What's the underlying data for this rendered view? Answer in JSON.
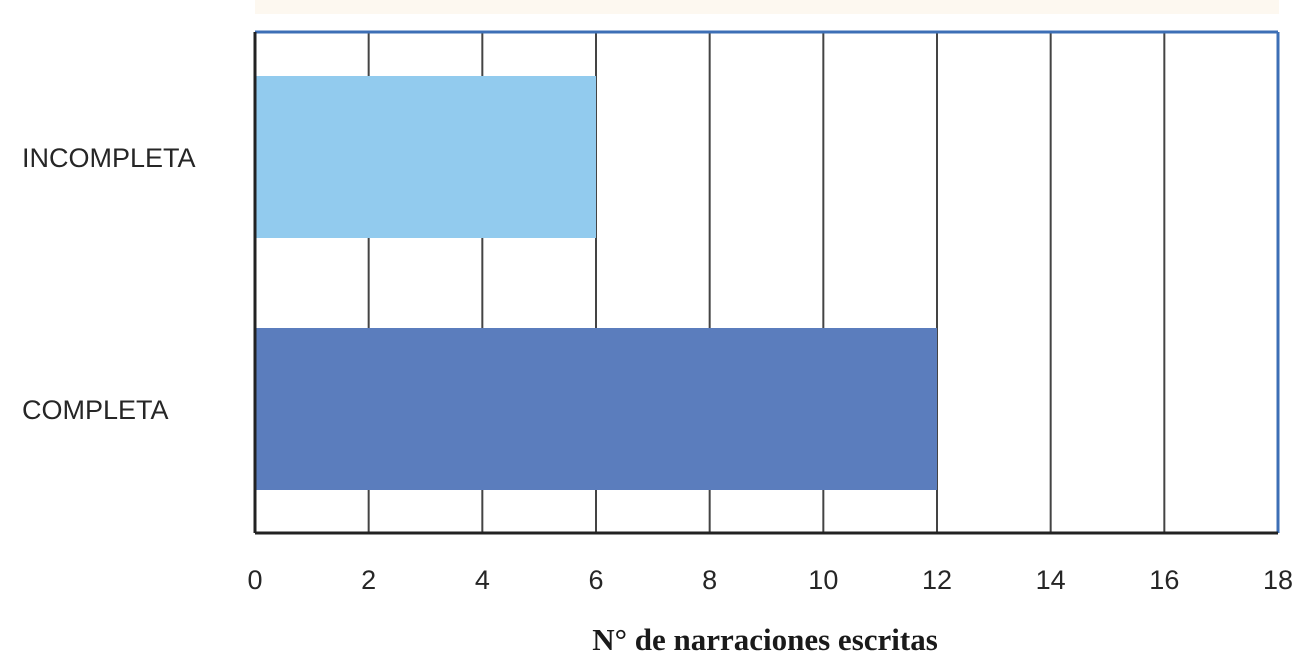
{
  "chart_data": {
    "type": "bar",
    "orientation": "horizontal",
    "categories": [
      "INCOMPLETA",
      "COMPLETA"
    ],
    "values": [
      6,
      12
    ],
    "colors": [
      "#92cbee",
      "#5b7dbd"
    ],
    "xlabel": "N° de narraciones escritas",
    "ylabel": "",
    "title": "",
    "xlim": [
      0,
      18
    ],
    "xticks": [
      0,
      2,
      4,
      6,
      8,
      10,
      12,
      14,
      16,
      18
    ],
    "grid": "vertical",
    "legend": "none"
  },
  "style": {
    "plot_border_color": "#3d6fb6",
    "grid_color": "#444444",
    "background_band_color": "#fdf8f0"
  }
}
